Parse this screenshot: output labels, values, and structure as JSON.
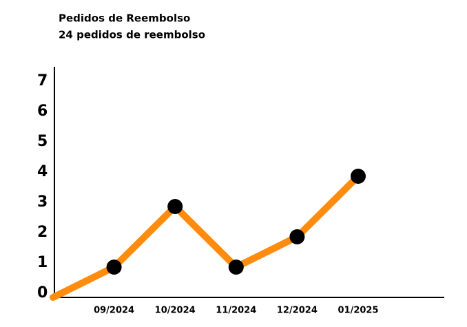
{
  "chart_data": {
    "type": "line",
    "title": "Pedidos de Reembolso",
    "subtitle": "24 pedidos de reembolso",
    "categories": [
      null,
      "09/2024",
      "10/2024",
      "11/2024",
      "12/2024",
      "01/2025"
    ],
    "values": [
      0,
      1,
      3,
      1,
      2,
      4
    ],
    "color": "#ff8c0f",
    "marker_color": "#000000",
    "ylim": [
      0,
      7.5
    ],
    "yticks": [
      0,
      1,
      2,
      3,
      4,
      5,
      6,
      7
    ],
    "grid": false
  }
}
